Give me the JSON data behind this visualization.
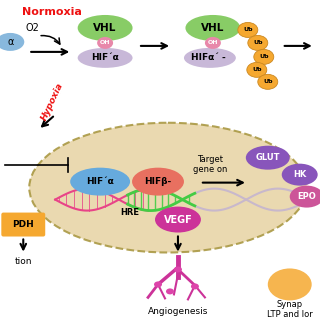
{
  "bg_color": "#ffffff",
  "normoxia_label": "Normoxia",
  "normoxia_color": "#ee1111",
  "o2_label": "O2",
  "hypoxia_label": "Hypoxia",
  "hypoxia_color": "#ee1111",
  "vhl_color": "#88cc66",
  "vhl_label": "VHL",
  "oh_color": "#e888aa",
  "oh_label": "OH",
  "hif_alpha_top_color": "#c8b8d8",
  "hif_alpha_nucleus_color": "#66aadd",
  "hif_beta_color": "#e87060",
  "ub_color": "#f5a830",
  "ub_edge": "#cc8820",
  "ub_label": "Ub",
  "nucleus_color": "#e8d5a8",
  "nucleus_edge": "#aa9944",
  "dna_pink": "#e84488",
  "dna_green": "#44cc44",
  "dna_light": "#c8b8cc",
  "glut_color": "#8855bb",
  "hk_color": "#8855bb",
  "epo_color": "#cc5599",
  "vegf_color": "#cc3399",
  "pdh_color": "#f5a830",
  "angio_color": "#cc3399",
  "orange_blob": "#f5a830",
  "arrow_color": "#111111"
}
